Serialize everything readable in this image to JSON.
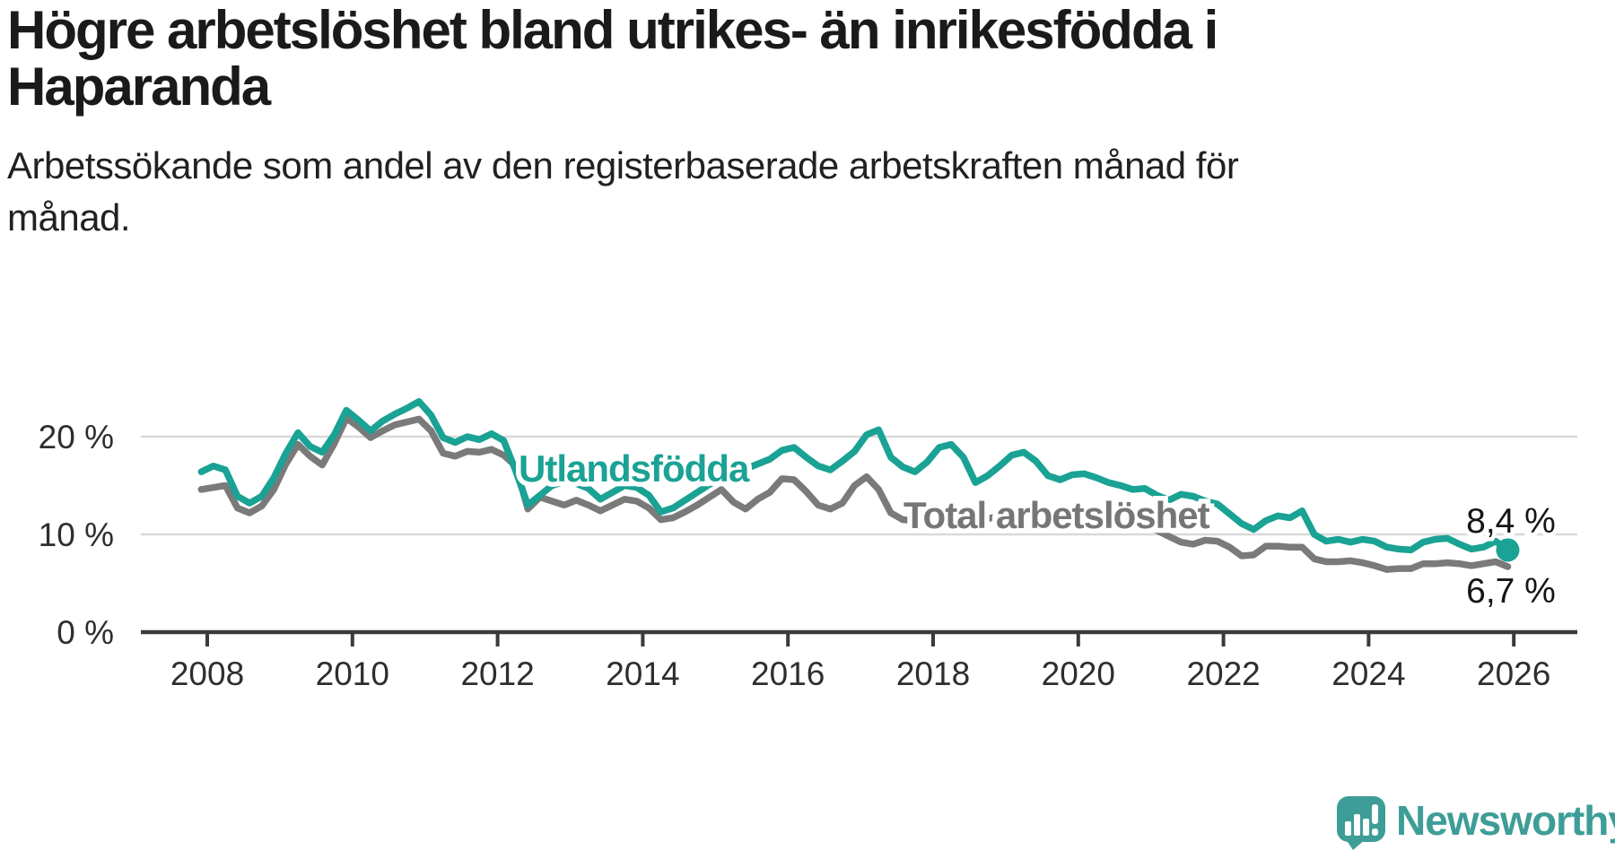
{
  "header": {
    "title_lines": [
      "Högre arbetslöshet bland utrikes- än inrikesfödda i",
      "Haparanda"
    ],
    "subtitle_lines": [
      "Arbetssökande som andel av den registerbaserade arbetskraften månad för",
      "månad."
    ]
  },
  "chart_data": {
    "type": "line",
    "title": "Högre arbetslöshet bland utrikes- än inrikesfödda i Haparanda",
    "subtitle": "Arbetssökande som andel av den registerbaserade arbetskraften månad för månad.",
    "unit": "%",
    "grid": "horizontal",
    "legend_position": "inline-labels",
    "x_start_year": 2007.9167,
    "x_step_years": 0.16667,
    "x_end_year": 2025.9167,
    "xlim": [
      2007.1,
      2027.1
    ],
    "ylim": [
      0,
      25
    ],
    "x_ticks": [
      2008,
      2010,
      2012,
      2014,
      2016,
      2018,
      2020,
      2022,
      2024,
      2026
    ],
    "y_ticks": [
      {
        "value": 0,
        "label": "0 %"
      },
      {
        "value": 10,
        "label": "10 %"
      },
      {
        "value": 20,
        "label": "20 %"
      }
    ],
    "series": [
      {
        "name": "Total arbetslöshet",
        "color": "#7a7a7a",
        "end_label": "6,7 %",
        "end_value": 6.7,
        "end_dot": false,
        "values": [
          14.6,
          14.8,
          15.0,
          12.7,
          12.2,
          12.9,
          14.6,
          17.2,
          19.2,
          18.0,
          17.1,
          19.3,
          21.9,
          21.0,
          19.9,
          20.6,
          21.2,
          21.5,
          21.8,
          20.6,
          18.3,
          18.0,
          18.5,
          18.4,
          18.7,
          18.1,
          17.0,
          12.6,
          13.8,
          13.4,
          13.0,
          13.5,
          13.0,
          12.4,
          13.0,
          13.6,
          13.4,
          12.7,
          11.5,
          11.7,
          12.3,
          13.0,
          13.8,
          14.6,
          13.3,
          12.6,
          13.6,
          14.3,
          15.7,
          15.6,
          14.4,
          13.0,
          12.6,
          13.2,
          15.0,
          15.9,
          14.6,
          12.2,
          11.5,
          11.4,
          11.5,
          11.9,
          12.2,
          11.9,
          11.4,
          11.6,
          11.9,
          12.2,
          12.4,
          12.0,
          11.5,
          11.2,
          11.4,
          11.6,
          11.4,
          11.2,
          11.0,
          10.8,
          10.9,
          10.4,
          9.8,
          9.2,
          9.0,
          9.4,
          9.3,
          8.7,
          7.8,
          7.9,
          8.8,
          8.8,
          8.7,
          8.7,
          7.5,
          7.2,
          7.2,
          7.3,
          7.1,
          6.8,
          6.4,
          6.5,
          6.5,
          7.0,
          7.0,
          7.1,
          7.0,
          6.8,
          7.0,
          7.2,
          6.7
        ]
      },
      {
        "name": "Utlandsfödda",
        "color": "#1aa294",
        "end_label": "8,4 %",
        "end_value": 8.4,
        "end_dot": true,
        "values": [
          16.4,
          17.0,
          16.6,
          13.9,
          13.2,
          13.9,
          15.8,
          18.3,
          20.4,
          19.0,
          18.4,
          20.2,
          22.7,
          21.7,
          20.6,
          21.6,
          22.3,
          22.9,
          23.6,
          22.2,
          19.9,
          19.4,
          20.0,
          19.7,
          20.3,
          19.6,
          16.5,
          13.0,
          14.0,
          15.0,
          15.4,
          15.2,
          14.7,
          13.6,
          14.3,
          15.0,
          14.8,
          14.0,
          12.3,
          12.7,
          13.5,
          14.3,
          15.1,
          15.7,
          16.2,
          16.7,
          17.2,
          17.7,
          18.6,
          18.9,
          17.9,
          17.0,
          16.6,
          17.5,
          18.5,
          20.2,
          20.7,
          17.9,
          16.9,
          16.4,
          17.4,
          18.9,
          19.2,
          17.9,
          15.3,
          16.0,
          17.0,
          18.1,
          18.4,
          17.5,
          16.0,
          15.6,
          16.1,
          16.2,
          15.8,
          15.3,
          15.0,
          14.6,
          14.7,
          14.0,
          13.5,
          14.1,
          13.9,
          13.4,
          13.1,
          12.1,
          11.1,
          10.5,
          11.4,
          11.9,
          11.7,
          12.4,
          10.0,
          9.3,
          9.5,
          9.2,
          9.5,
          9.3,
          8.7,
          8.5,
          8.4,
          9.2,
          9.5,
          9.6,
          9.0,
          8.5,
          8.7,
          9.3,
          8.4
        ]
      }
    ]
  },
  "annotations": {
    "utlandsfodda_label": "Utlandsfödda",
    "total_label": "Total arbetslöshet",
    "teal_end_value": "8,4 %",
    "gray_end_value": "6,7 %"
  },
  "logo": {
    "text": "Newsworthy",
    "color": "#3e9d97",
    "icon": "newsworthy-speech-bubble-chart-icon"
  }
}
